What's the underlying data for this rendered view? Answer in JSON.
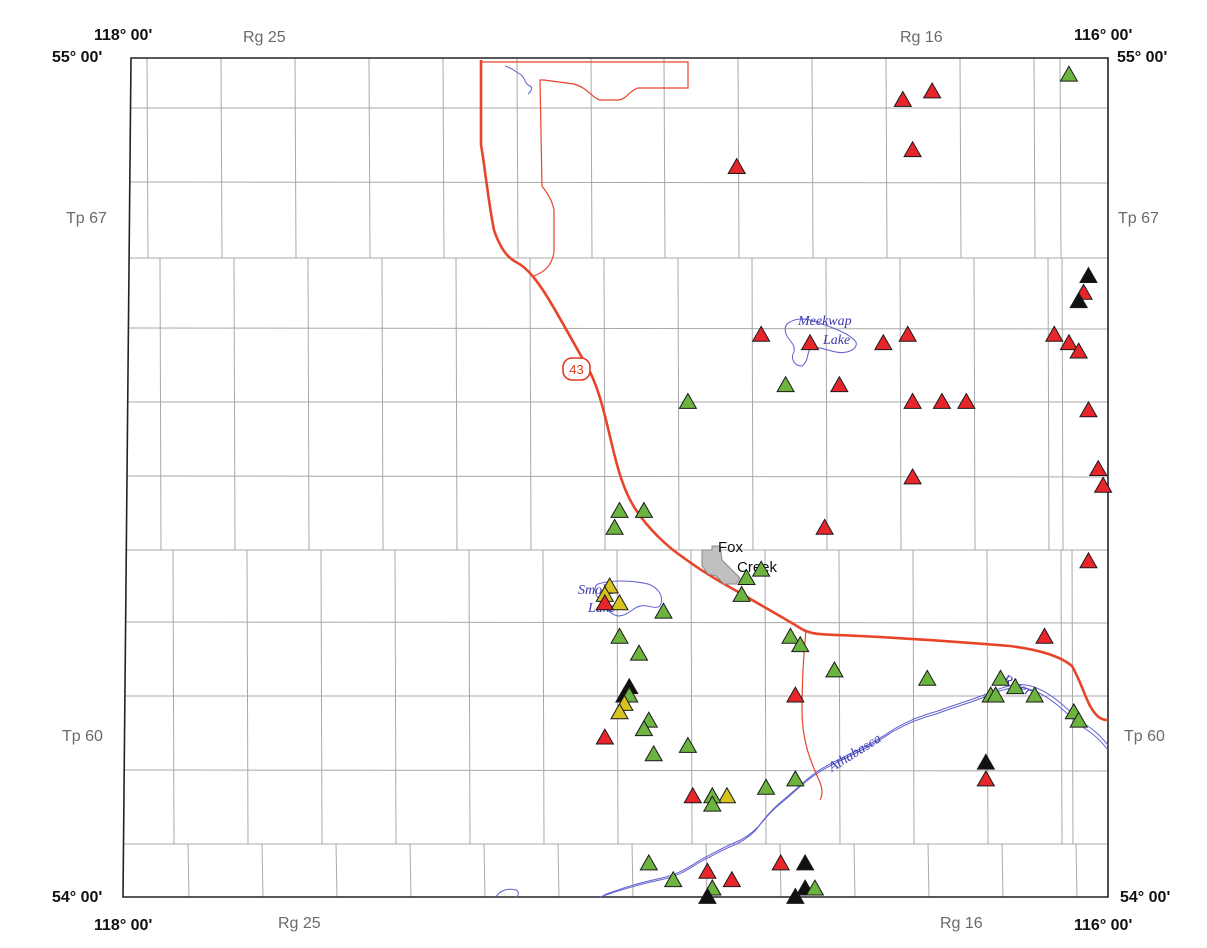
{
  "map": {
    "corners": {
      "top_left_lon": "118° 00'",
      "top_right_lon": "116° 00'",
      "bottom_left_lon": "118° 00'",
      "bottom_right_lon": "116° 00'",
      "top_left_lat": "55° 00'",
      "top_right_lat": "55° 00'",
      "bottom_left_lat": "54° 00'",
      "bottom_right_lat": "54° 00'"
    },
    "ranges": {
      "top_left": "Rg 25",
      "top_right": "Rg 16",
      "bottom_left": "Rg 25",
      "bottom_right": "Rg 16"
    },
    "townships": {
      "left_upper": "Tp 67",
      "right_upper": "Tp 67",
      "left_lower": "Tp 60",
      "right_lower": "Tp 60"
    },
    "town": {
      "line1": "Fox",
      "line2": "Creek"
    },
    "lakes": {
      "meekwap_1": "Meekwap",
      "meekwap_2": "Lake",
      "smoke_1": "Smoke",
      "smoke_2": "Lake"
    },
    "river": {
      "name1": "Athabasca",
      "name2": "River"
    },
    "highway": {
      "number": "43"
    },
    "colors": {
      "red": "#e8252b",
      "green": "#6db33f",
      "yellow": "#d8c21e",
      "black": "#111111",
      "road": "#e8442a",
      "water": "#5a5acd",
      "grid": "#9a9a9a",
      "town": "#bdbdbd"
    },
    "sites": [
      {
        "lon": -116.08,
        "lat": 54.98,
        "type": "green"
      },
      {
        "lon": -116.36,
        "lat": 54.96,
        "type": "red"
      },
      {
        "lon": -116.42,
        "lat": 54.95,
        "type": "red"
      },
      {
        "lon": -116.4,
        "lat": 54.89,
        "type": "red"
      },
      {
        "lon": -116.76,
        "lat": 54.87,
        "type": "red"
      },
      {
        "lon": -116.04,
        "lat": 54.74,
        "type": "black"
      },
      {
        "lon": -116.05,
        "lat": 54.72,
        "type": "red"
      },
      {
        "lon": -116.06,
        "lat": 54.71,
        "type": "black"
      },
      {
        "lon": -116.71,
        "lat": 54.67,
        "type": "red"
      },
      {
        "lon": -116.61,
        "lat": 54.66,
        "type": "red"
      },
      {
        "lon": -116.46,
        "lat": 54.66,
        "type": "red"
      },
      {
        "lon": -116.41,
        "lat": 54.67,
        "type": "red"
      },
      {
        "lon": -116.11,
        "lat": 54.67,
        "type": "red"
      },
      {
        "lon": -116.08,
        "lat": 54.66,
        "type": "red"
      },
      {
        "lon": -116.06,
        "lat": 54.65,
        "type": "red"
      },
      {
        "lon": -116.66,
        "lat": 54.61,
        "type": "green"
      },
      {
        "lon": -116.55,
        "lat": 54.61,
        "type": "red"
      },
      {
        "lon": -116.86,
        "lat": 54.59,
        "type": "green"
      },
      {
        "lon": -116.4,
        "lat": 54.59,
        "type": "red"
      },
      {
        "lon": -116.34,
        "lat": 54.59,
        "type": "red"
      },
      {
        "lon": -116.29,
        "lat": 54.59,
        "type": "red"
      },
      {
        "lon": -116.04,
        "lat": 54.58,
        "type": "red"
      },
      {
        "lon": -116.02,
        "lat": 54.51,
        "type": "red"
      },
      {
        "lon": -116.4,
        "lat": 54.5,
        "type": "red"
      },
      {
        "lon": -116.01,
        "lat": 54.49,
        "type": "red"
      },
      {
        "lon": -117.0,
        "lat": 54.46,
        "type": "green"
      },
      {
        "lon": -116.95,
        "lat": 54.46,
        "type": "green"
      },
      {
        "lon": -117.01,
        "lat": 54.44,
        "type": "green"
      },
      {
        "lon": -116.58,
        "lat": 54.44,
        "type": "red"
      },
      {
        "lon": -116.04,
        "lat": 54.4,
        "type": "red"
      },
      {
        "lon": -116.71,
        "lat": 54.39,
        "type": "green"
      },
      {
        "lon": -116.74,
        "lat": 54.38,
        "type": "green"
      },
      {
        "lon": -116.75,
        "lat": 54.36,
        "type": "green"
      },
      {
        "lon": -117.02,
        "lat": 54.37,
        "type": "yellow"
      },
      {
        "lon": -117.03,
        "lat": 54.36,
        "type": "yellow"
      },
      {
        "lon": -117.0,
        "lat": 54.35,
        "type": "yellow"
      },
      {
        "lon": -117.03,
        "lat": 54.35,
        "type": "red"
      },
      {
        "lon": -116.91,
        "lat": 54.34,
        "type": "green"
      },
      {
        "lon": -116.13,
        "lat": 54.31,
        "type": "red"
      },
      {
        "lon": -117.0,
        "lat": 54.31,
        "type": "green"
      },
      {
        "lon": -116.65,
        "lat": 54.31,
        "type": "green"
      },
      {
        "lon": -116.63,
        "lat": 54.3,
        "type": "green"
      },
      {
        "lon": -116.96,
        "lat": 54.29,
        "type": "green"
      },
      {
        "lon": -116.56,
        "lat": 54.27,
        "type": "green"
      },
      {
        "lon": -116.37,
        "lat": 54.26,
        "type": "green"
      },
      {
        "lon": -116.22,
        "lat": 54.26,
        "type": "green"
      },
      {
        "lon": -116.19,
        "lat": 54.25,
        "type": "green"
      },
      {
        "lon": -116.98,
        "lat": 54.25,
        "type": "black"
      },
      {
        "lon": -116.99,
        "lat": 54.24,
        "type": "black"
      },
      {
        "lon": -116.98,
        "lat": 54.24,
        "type": "green"
      },
      {
        "lon": -116.99,
        "lat": 54.23,
        "type": "yellow"
      },
      {
        "lon": -116.64,
        "lat": 54.24,
        "type": "red"
      },
      {
        "lon": -116.24,
        "lat": 54.24,
        "type": "green"
      },
      {
        "lon": -116.23,
        "lat": 54.24,
        "type": "green"
      },
      {
        "lon": -116.15,
        "lat": 54.24,
        "type": "green"
      },
      {
        "lon": -116.07,
        "lat": 54.22,
        "type": "green"
      },
      {
        "lon": -116.06,
        "lat": 54.21,
        "type": "green"
      },
      {
        "lon": -117.0,
        "lat": 54.22,
        "type": "yellow"
      },
      {
        "lon": -116.94,
        "lat": 54.21,
        "type": "green"
      },
      {
        "lon": -116.95,
        "lat": 54.2,
        "type": "green"
      },
      {
        "lon": -117.03,
        "lat": 54.19,
        "type": "red"
      },
      {
        "lon": -116.86,
        "lat": 54.18,
        "type": "green"
      },
      {
        "lon": -116.93,
        "lat": 54.17,
        "type": "green"
      },
      {
        "lon": -116.25,
        "lat": 54.16,
        "type": "black"
      },
      {
        "lon": -116.25,
        "lat": 54.14,
        "type": "red"
      },
      {
        "lon": -116.64,
        "lat": 54.14,
        "type": "green"
      },
      {
        "lon": -116.7,
        "lat": 54.13,
        "type": "green"
      },
      {
        "lon": -116.78,
        "lat": 54.12,
        "type": "yellow"
      },
      {
        "lon": -116.81,
        "lat": 54.12,
        "type": "green"
      },
      {
        "lon": -116.85,
        "lat": 54.12,
        "type": "red"
      },
      {
        "lon": -116.81,
        "lat": 54.11,
        "type": "green"
      },
      {
        "lon": -116.94,
        "lat": 54.04,
        "type": "green"
      },
      {
        "lon": -116.67,
        "lat": 54.04,
        "type": "red"
      },
      {
        "lon": -116.62,
        "lat": 54.04,
        "type": "black"
      },
      {
        "lon": -116.82,
        "lat": 54.03,
        "type": "red"
      },
      {
        "lon": -116.77,
        "lat": 54.02,
        "type": "red"
      },
      {
        "lon": -116.89,
        "lat": 54.02,
        "type": "green"
      },
      {
        "lon": -116.81,
        "lat": 54.01,
        "type": "black"
      },
      {
        "lon": -116.81,
        "lat": 54.01,
        "type": "green"
      },
      {
        "lon": -116.62,
        "lat": 54.01,
        "type": "black"
      },
      {
        "lon": -116.6,
        "lat": 54.01,
        "type": "green"
      },
      {
        "lon": -116.82,
        "lat": 54.0,
        "type": "black"
      },
      {
        "lon": -116.64,
        "lat": 54.0,
        "type": "black"
      }
    ]
  }
}
